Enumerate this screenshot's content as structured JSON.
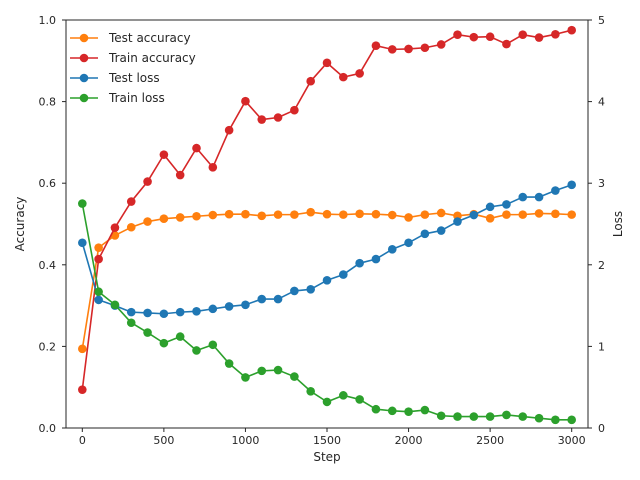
{
  "chart_data": {
    "type": "line",
    "xlabel": "Step",
    "ylabel_left": "Accuracy",
    "ylabel_right": "Loss",
    "xlim": [
      -100,
      3100
    ],
    "ylim_left": [
      0,
      1
    ],
    "ylim_right": [
      0,
      5
    ],
    "xticks": [
      0,
      500,
      1000,
      1500,
      2000,
      2500,
      3000
    ],
    "yticks_left": [
      "0.0",
      "0.2",
      "0.4",
      "0.6",
      "0.8",
      "1.0"
    ],
    "yticks_right": [
      "0",
      "1",
      "2",
      "3",
      "4",
      "5"
    ],
    "legend_position": "top-left",
    "grid": false,
    "x": [
      0,
      100,
      200,
      300,
      400,
      500,
      600,
      700,
      800,
      900,
      1000,
      1100,
      1200,
      1300,
      1400,
      1500,
      1600,
      1700,
      1800,
      1900,
      2000,
      2100,
      2200,
      2300,
      2400,
      2500,
      2600,
      2700,
      2800,
      2900,
      3000
    ],
    "series": [
      {
        "name": "Test accuracy",
        "axis": "left",
        "color": "#ff7f0e",
        "values": [
          0.194,
          0.442,
          0.472,
          0.492,
          0.506,
          0.513,
          0.516,
          0.519,
          0.522,
          0.524,
          0.524,
          0.52,
          0.523,
          0.523,
          0.529,
          0.524,
          0.523,
          0.525,
          0.524,
          0.522,
          0.516,
          0.523,
          0.527,
          0.52,
          0.524,
          0.514,
          0.523,
          0.523,
          0.526,
          0.525,
          0.523
        ]
      },
      {
        "name": "Train accuracy",
        "axis": "left",
        "color": "#d62728",
        "values": [
          0.094,
          0.414,
          0.491,
          0.555,
          0.604,
          0.67,
          0.62,
          0.686,
          0.639,
          0.73,
          0.801,
          0.756,
          0.761,
          0.779,
          0.85,
          0.895,
          0.86,
          0.869,
          0.937,
          0.928,
          0.929,
          0.932,
          0.94,
          0.964,
          0.958,
          0.959,
          0.941,
          0.964,
          0.957,
          0.965,
          0.975
        ]
      },
      {
        "name": "Test loss",
        "axis": "right",
        "color": "#1f77b4",
        "values": [
          2.27,
          1.57,
          1.5,
          1.42,
          1.41,
          1.4,
          1.42,
          1.43,
          1.46,
          1.49,
          1.51,
          1.58,
          1.58,
          1.68,
          1.7,
          1.81,
          1.88,
          2.02,
          2.07,
          2.19,
          2.27,
          2.38,
          2.42,
          2.53,
          2.61,
          2.71,
          2.74,
          2.83,
          2.83,
          2.91,
          2.98
        ]
      },
      {
        "name": "Train loss",
        "axis": "right",
        "color": "#2ca02c",
        "values": [
          2.75,
          1.67,
          1.51,
          1.29,
          1.17,
          1.04,
          1.12,
          0.95,
          1.02,
          0.79,
          0.62,
          0.7,
          0.71,
          0.63,
          0.45,
          0.32,
          0.4,
          0.35,
          0.23,
          0.21,
          0.2,
          0.22,
          0.15,
          0.14,
          0.14,
          0.14,
          0.16,
          0.14,
          0.12,
          0.1,
          0.1
        ]
      }
    ],
    "legend_order": [
      0,
      1,
      2,
      3
    ]
  }
}
